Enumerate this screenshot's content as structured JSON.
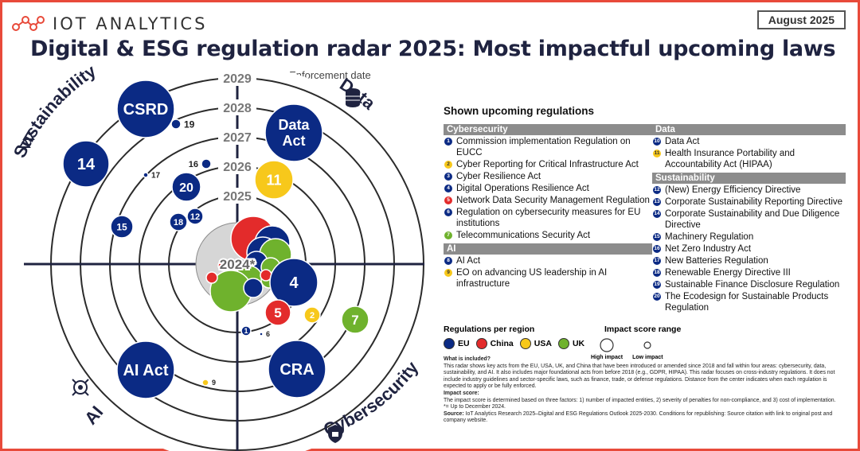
{
  "header": {
    "logo_text": "IOT ANALYTICS",
    "date": "August 2025",
    "title": "Digital & ESG regulation radar 2025: Most impactful upcoming laws",
    "subtitle": "Year = Enforcement date"
  },
  "colors": {
    "eu": "#0b2a84",
    "china": "#e32b2b",
    "usa": "#f7c81b",
    "uk": "#6fb22d",
    "frame": "#e84a3a",
    "ring": "#2b2b2b",
    "center": "#d6d6d6"
  },
  "chart_data": {
    "type": "radar",
    "center_label": "2024*",
    "ring_years": [
      "2025",
      "2026",
      "2027",
      "2028",
      "2029"
    ],
    "quadrants": [
      "Sustainability",
      "Data",
      "Cybersecurity",
      "AI"
    ],
    "bubbles": [
      {
        "id": "CSRD",
        "region": "EU",
        "year": 2029,
        "size": "large"
      },
      {
        "id": "19",
        "region": "EU",
        "year": 2028,
        "size": "tiny"
      },
      {
        "id": "14",
        "region": "EU",
        "year": 2028,
        "size": "medium"
      },
      {
        "id": "16",
        "region": "EU",
        "year": 2027,
        "size": "tiny"
      },
      {
        "id": "17",
        "region": "EU",
        "year": 2027,
        "size": "micro"
      },
      {
        "id": "20",
        "region": "EU",
        "year": 2026,
        "size": "small"
      },
      {
        "id": "18",
        "region": "EU",
        "year": 2025,
        "size": "tiny"
      },
      {
        "id": "12",
        "region": "EU",
        "year": 2025,
        "size": "tiny"
      },
      {
        "id": "15",
        "region": "EU",
        "year": 2025,
        "size": "tiny"
      },
      {
        "id": "Data Act",
        "region": "EU",
        "year": 2027,
        "size": "large"
      },
      {
        "id": "11",
        "region": "USA",
        "year": 2026,
        "size": "medium"
      },
      {
        "id": "4",
        "region": "EU",
        "year": 2025,
        "size": "medium"
      },
      {
        "id": "5",
        "region": "China",
        "year": 2025,
        "size": "small"
      },
      {
        "id": "2",
        "region": "USA",
        "year": 2025,
        "size": "tiny"
      },
      {
        "id": "7",
        "region": "UK",
        "year": 2026,
        "size": "small"
      },
      {
        "id": "1",
        "region": "EU",
        "year": 2026,
        "size": "tiny"
      },
      {
        "id": "6",
        "region": "EU",
        "year": 2026,
        "size": "micro"
      },
      {
        "id": "CRA",
        "region": "EU",
        "year": 2027,
        "size": "large"
      },
      {
        "id": "AI Act",
        "region": "EU",
        "year": 2027,
        "size": "large"
      },
      {
        "id": "9",
        "region": "USA",
        "year": 2027,
        "size": "micro"
      }
    ]
  },
  "legend": {
    "title": "Shown upcoming regulations",
    "left": [
      {
        "category": "Cybersecurity",
        "items": [
          {
            "n": "1",
            "r": "eu",
            "t": "Commission implementation Regulation on EUCC"
          },
          {
            "n": "2",
            "r": "us",
            "t": "Cyber Reporting for Critical Infrastructure Act"
          },
          {
            "n": "3",
            "r": "eu",
            "t": "Cyber Resilience Act"
          },
          {
            "n": "4",
            "r": "eu",
            "t": "Digital Operations Resilience Act"
          },
          {
            "n": "5",
            "r": "cn",
            "t": "Network Data Security Management Regulation"
          },
          {
            "n": "6",
            "r": "eu",
            "t": "Regulation on cybersecurity measures for EU institutions"
          },
          {
            "n": "7",
            "r": "uk",
            "t": "Telecommunications Security Act"
          }
        ]
      },
      {
        "category": "AI",
        "items": [
          {
            "n": "8",
            "r": "eu",
            "t": "AI Act"
          },
          {
            "n": "9",
            "r": "us",
            "t": "EO on advancing US leadership in AI infrastructure"
          }
        ]
      }
    ],
    "right": [
      {
        "category": "Data",
        "items": [
          {
            "n": "10",
            "r": "eu",
            "t": "Data Act"
          },
          {
            "n": "11",
            "r": "us",
            "t": "Health Insurance Portability and Accountability Act (HIPAA)"
          }
        ]
      },
      {
        "category": "Sustainability",
        "items": [
          {
            "n": "12",
            "r": "eu",
            "t": "(New) Energy Efficiency Directive"
          },
          {
            "n": "13",
            "r": "eu",
            "t": "Corporate Sustainability Reporting Directive"
          },
          {
            "n": "14",
            "r": "eu",
            "t": "Corporate Sustainability and Due Diligence Directive"
          },
          {
            "n": "15",
            "r": "eu",
            "t": "Machinery Regulation"
          },
          {
            "n": "16",
            "r": "eu",
            "t": "Net Zero Industry Act"
          },
          {
            "n": "17",
            "r": "eu",
            "t": "New Batteries Regulation"
          },
          {
            "n": "18",
            "r": "eu",
            "t": "Renewable Energy Directive III"
          },
          {
            "n": "19",
            "r": "eu",
            "t": "Sustainable Finance Disclosure Regulation"
          },
          {
            "n": "20",
            "r": "eu",
            "t": "The Ecodesign for Sustainable Products Regulation"
          }
        ]
      }
    ],
    "regions_title": "Regulations per region",
    "regions": [
      "EU",
      "China",
      "USA",
      "UK"
    ],
    "impact_title": "Impact score range",
    "impact_high": "High impact",
    "impact_low": "Low impact"
  },
  "notes": {
    "included_head": "What is included?",
    "included_text": "This radar shows key acts from the EU, USA, UK, and China that have been introduced or amended since 2018 and fall within four areas: cybersecurity, data, sustainability, and AI. It also includes major foundational acts from before 2018 (e.g., GDPR, HIPAA). This radar focuses on cross-industry regulations. It does not include industry guidelines and sector-specific laws, such as finance, trade, or defense regulations. Distance from the center indicates when each regulation is expected to apply or be fully enforced.",
    "impact_head": "Impact score:",
    "impact_text": "The impact score is determined based on three factors: 1) number of impacted entities, 2) severity of penalties for non-compliance, and 3) cost of implementation.",
    "footnote": "*= Up to December 2024.",
    "source_head": "Source:",
    "source_text": "IoT Analytics Research 2025–Digital and ESG Regulations Outlook 2025-2030. Conditions for republishing: Source citation with link to original post and company website."
  }
}
